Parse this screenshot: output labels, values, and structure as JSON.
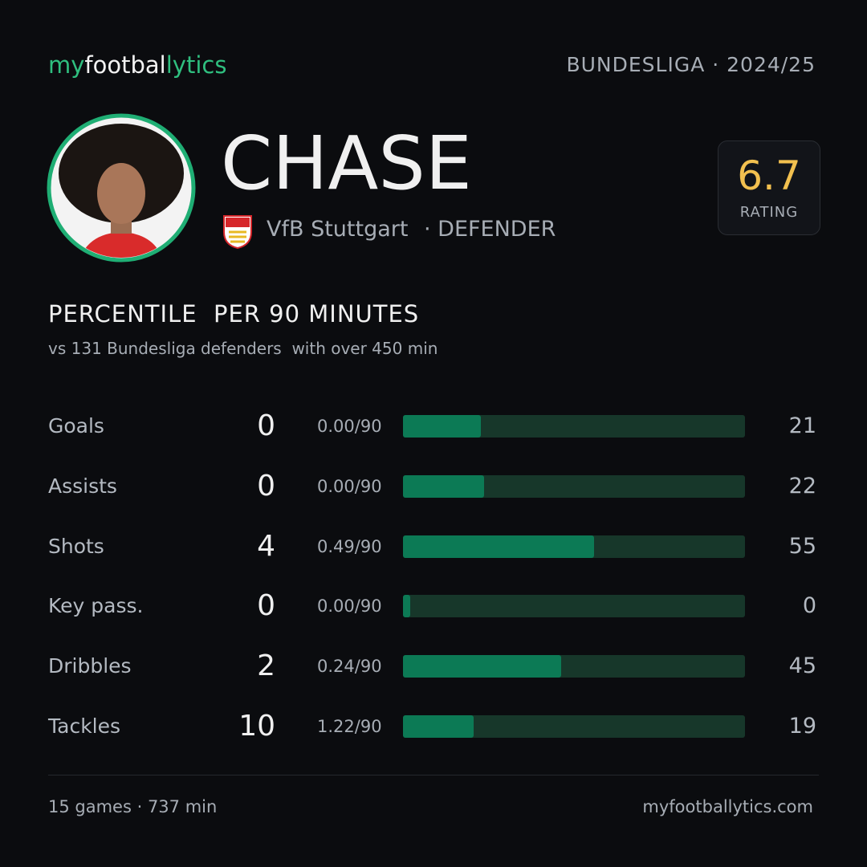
{
  "header": {
    "logo": [
      "my",
      "footbal",
      "lytics"
    ],
    "league": "BUNDESLIGA · 2024/25"
  },
  "player": {
    "name": "CHASE",
    "club": "VfB Stuttgart",
    "position": "· DEFENDER",
    "rating": "6.7",
    "rating_label": "RATING"
  },
  "section": {
    "title": "PERCENTILE  PER 90 MINUTES",
    "subtitle": "vs 131 Bundesliga defenders  with over 450 min"
  },
  "stats": {
    "xlim": [
      0,
      100
    ],
    "rows": [
      {
        "label": "Goals",
        "total": "0",
        "per90": "0.00/90",
        "percentile": 21
      },
      {
        "label": "Assists",
        "total": "0",
        "per90": "0.00/90",
        "percentile": 22
      },
      {
        "label": "Shots",
        "total": "4",
        "per90": "0.49/90",
        "percentile": 55
      },
      {
        "label": "Key pass.",
        "total": "0",
        "per90": "0.00/90",
        "percentile": 0
      },
      {
        "label": "Dribbles",
        "total": "2",
        "per90": "0.24/90",
        "percentile": 45
      },
      {
        "label": "Tackles",
        "total": "10",
        "per90": "1.22/90",
        "percentile": 19
      }
    ]
  },
  "footer": {
    "summary": "15 games · 737 min",
    "site": "myfootballytics.com"
  }
}
